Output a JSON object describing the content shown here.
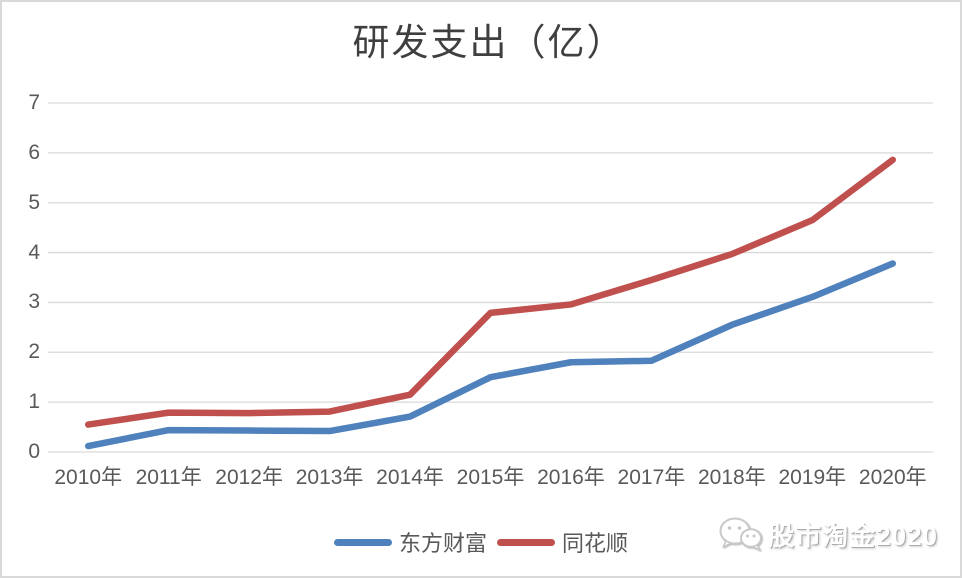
{
  "chart_data": {
    "type": "line",
    "title": "研发支出（亿）",
    "categories": [
      "2010年",
      "2011年",
      "2012年",
      "2013年",
      "2014年",
      "2015年",
      "2016年",
      "2017年",
      "2018年",
      "2019年",
      "2020年"
    ],
    "series": [
      {
        "name": "东方财富",
        "color": "#4f81bd",
        "values": [
          0.12,
          0.44,
          0.43,
          0.42,
          0.71,
          1.5,
          1.8,
          1.83,
          2.55,
          3.11,
          3.78
        ]
      },
      {
        "name": "同花顺",
        "color": "#c0504d",
        "values": [
          0.55,
          0.79,
          0.78,
          0.81,
          1.15,
          2.79,
          2.96,
          3.45,
          3.97,
          4.65,
          5.86
        ]
      }
    ],
    "xlabel": "",
    "ylabel": "",
    "ylim": [
      0,
      7
    ],
    "yticks": [
      0,
      1,
      2,
      3,
      4,
      5,
      6,
      7
    ],
    "grid": true,
    "legend_position": "bottom"
  },
  "watermark": {
    "text": "股市淘金2020",
    "icon": "wechat-icon"
  },
  "colors": {
    "gridline": "#d9d9d9",
    "axis_text": "#595959",
    "title_text": "#3f3f3f",
    "frame_border": "#d9d9d9",
    "series_blue": "#4f81bd",
    "series_red": "#c0504d",
    "watermark_text": "#ffffff",
    "watermark_shadow": "#ababab"
  }
}
